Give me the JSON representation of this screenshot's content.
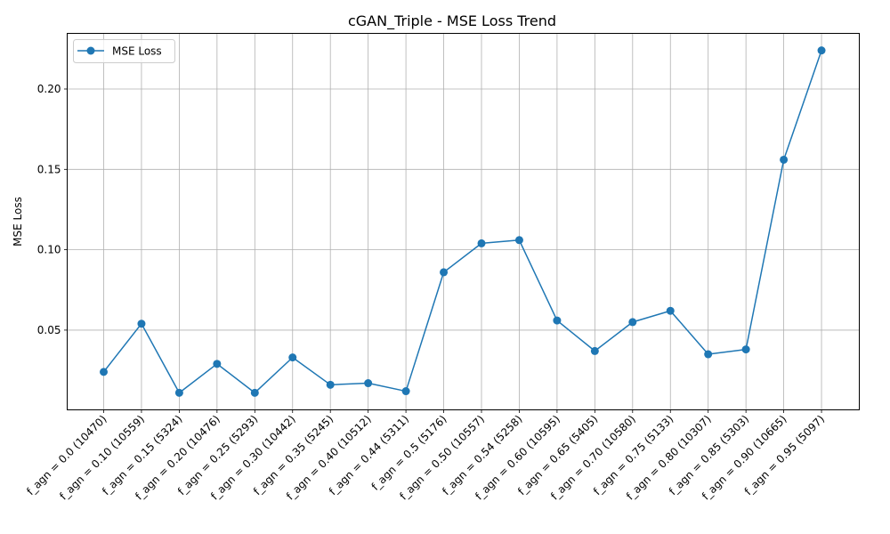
{
  "chart_data": {
    "type": "line",
    "title": "cGAN_Triple - MSE Loss Trend",
    "xlabel": "",
    "ylabel": "MSE Loss",
    "categories": [
      "f_agn = 0.0 (10470)",
      "f_agn = 0.10 (10559)",
      "f_agn = 0.15 (5324)",
      "f_agn = 0.20 (10476)",
      "f_agn = 0.25 (5293)",
      "f_agn = 0.30 (10442)",
      "f_agn = 0.35 (5245)",
      "f_agn = 0.40 (10512)",
      "f_agn = 0.44 (5311)",
      "f_agn = 0.5 (5176)",
      "f_agn = 0.50 (10557)",
      "f_agn = 0.54 (5258)",
      "f_agn = 0.60 (10595)",
      "f_agn = 0.65 (5405)",
      "f_agn = 0.70 (10580)",
      "f_agn = 0.75 (5133)",
      "f_agn = 0.80 (10307)",
      "f_agn = 0.85 (5303)",
      "f_agn = 0.90 (10665)",
      "f_agn = 0.95 (5097)"
    ],
    "series": [
      {
        "name": "MSE Loss",
        "color": "#1f77b4",
        "marker": "circle",
        "values": [
          0.024,
          0.054,
          0.011,
          0.029,
          0.011,
          0.033,
          0.016,
          0.017,
          0.012,
          0.086,
          0.104,
          0.106,
          0.056,
          0.037,
          0.055,
          0.062,
          0.035,
          0.038,
          0.156,
          0.224
        ]
      }
    ],
    "yticks": [
      "0.05",
      "0.10",
      "0.15",
      "0.20"
    ],
    "ylim": [
      0.0004,
      0.2346
    ],
    "grid": true,
    "legend_position": "top-left",
    "xtick_rotation_deg": 45
  }
}
